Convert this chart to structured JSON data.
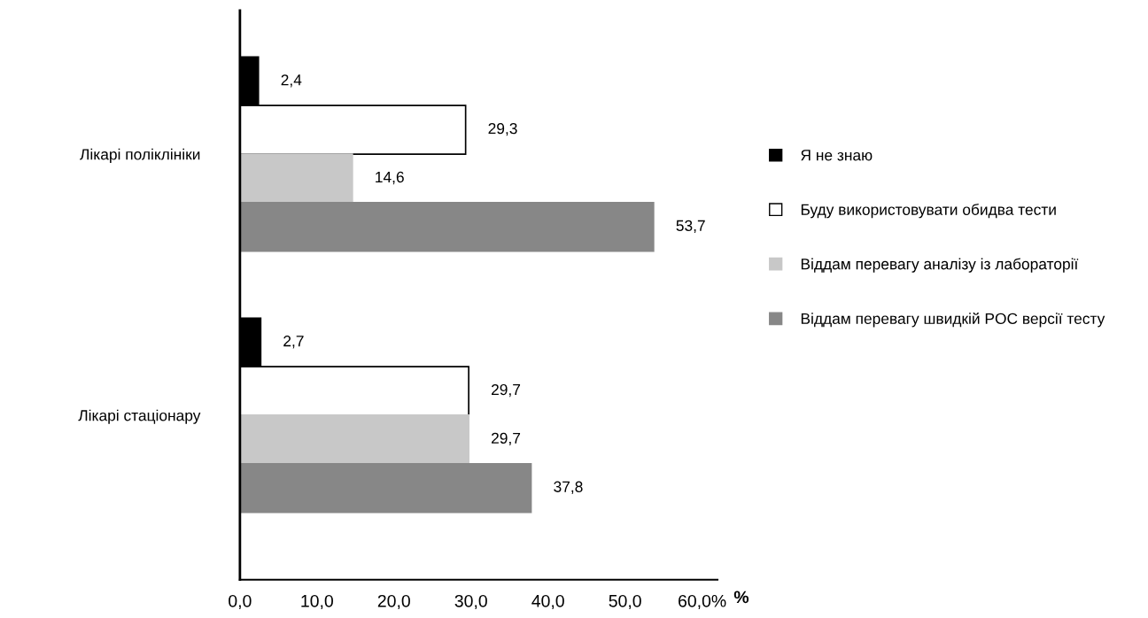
{
  "chart_data": {
    "type": "bar",
    "orientation": "horizontal",
    "categories": [
      "Лікарі поліклініки",
      "Лікарі стаціонару"
    ],
    "series": [
      {
        "name": "Я не знаю",
        "color": "#000000",
        "values": [
          2.4,
          2.7
        ],
        "value_labels": [
          "2,4",
          "2,7"
        ]
      },
      {
        "name": "Буду використовувати обидва тести",
        "color": "#ffffff",
        "values": [
          29.3,
          29.7
        ],
        "value_labels": [
          "29,3",
          "29,7"
        ]
      },
      {
        "name": "Віддам перевагу аналізу із лабораторії",
        "color": "#c8c8c8",
        "values": [
          14.6,
          29.7
        ],
        "value_labels": [
          "14,6",
          "29,7"
        ]
      },
      {
        "name": "Віддам перевагу швидкій POC версії тесту",
        "color": "#878787",
        "values": [
          53.7,
          37.8
        ],
        "value_labels": [
          "53,7",
          "37,8"
        ]
      }
    ],
    "xlim": [
      0,
      62
    ],
    "xticks": [
      {
        "value": 0,
        "label": "0,0"
      },
      {
        "value": 10,
        "label": "10,0"
      },
      {
        "value": 20,
        "label": "20,0"
      },
      {
        "value": 30,
        "label": "30,0"
      },
      {
        "value": 40,
        "label": "40,0"
      },
      {
        "value": 50,
        "label": "50,0"
      },
      {
        "value": 60,
        "label": "60,0%"
      }
    ],
    "xlabel": "%",
    "legend": "right",
    "grid": false
  }
}
